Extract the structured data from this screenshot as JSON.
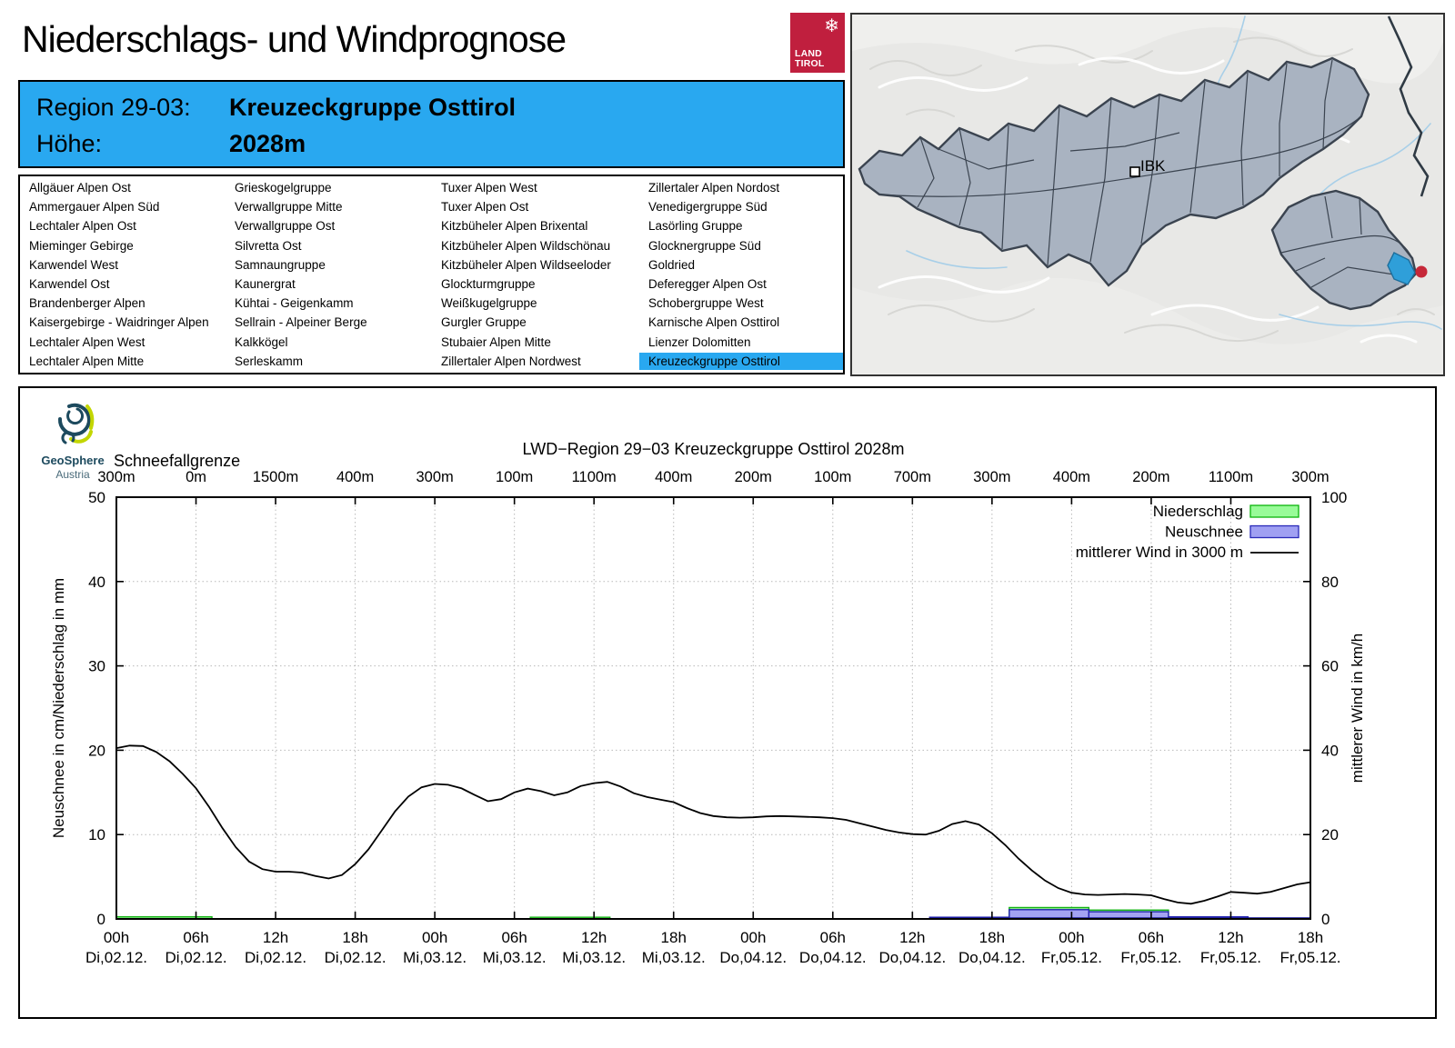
{
  "page_title": "Niederschlags- und Windprognose",
  "logo": {
    "glyph": "❄",
    "line1": "LAND",
    "line2": "TIROL"
  },
  "region_header": {
    "region_label": "Region 29-03:",
    "region_value": "Kreuzeckgruppe Osttirol",
    "altitude_label": "Höhe:",
    "altitude_value": "2028m"
  },
  "regions": {
    "selected": "Kreuzeckgruppe Osttirol",
    "columns": [
      [
        "Allgäuer Alpen Ost",
        "Ammergauer Alpen Süd",
        "Lechtaler Alpen Ost",
        "Mieminger Gebirge",
        "Karwendel West",
        "Karwendel Ost",
        "Brandenberger Alpen",
        "Kaisergebirge - Waidringer Alpen",
        "Lechtaler Alpen West",
        "Lechtaler Alpen Mitte"
      ],
      [
        "Grieskogelgruppe",
        "Verwallgruppe Mitte",
        "Verwallgruppe Ost",
        "Silvretta Ost",
        "Samnaungruppe",
        "Kaunergrat",
        "Kühtai - Geigenkamm",
        "Sellrain - Alpeiner Berge",
        "Kalkkögel",
        "Serleskamm"
      ],
      [
        "Tuxer Alpen West",
        "Tuxer Alpen Ost",
        "Kitzbüheler Alpen Brixental",
        "Kitzbüheler Alpen Wildschönau",
        "Kitzbüheler Alpen Wildseeloder",
        "Glockturmgruppe",
        "Weißkugelgruppe",
        "Gurgler Gruppe",
        "Stubaier Alpen Mitte",
        "Zillertaler Alpen Nordwest"
      ],
      [
        "Zillertaler Alpen Nordost",
        "Venedigergruppe Süd",
        "Lasörling Gruppe",
        "Glocknergruppe Süd",
        "Goldried",
        "Deferegger Alpen Ost",
        "Schobergruppe West",
        "Karnische Alpen Osttirol",
        "Lienzer Dolomitten",
        "Kreuzeckgruppe Osttirol"
      ]
    ]
  },
  "map": {
    "city_label": "IBK"
  },
  "geosphere": {
    "name": "GeoSphere",
    "country": "Austria"
  },
  "chart_data": {
    "type": "mixed",
    "title": "LWD−Region 29−03 Kreuzeckgruppe Osttirol 2028m",
    "snowline_label": "Schneefallgrenze",
    "snowline_values": [
      "300m",
      "0m",
      "1500m",
      "400m",
      "300m",
      "100m",
      "1100m",
      "400m",
      "200m",
      "100m",
      "700m",
      "300m",
      "400m",
      "200m",
      "1100m",
      "300m"
    ],
    "x_tick_times": [
      "00h",
      "06h",
      "12h",
      "18h",
      "00h",
      "06h",
      "12h",
      "18h",
      "00h",
      "06h",
      "12h",
      "18h",
      "00h",
      "06h",
      "12h",
      "18h"
    ],
    "x_tick_dates": [
      "Di,02.12.",
      "Di,02.12.",
      "Di,02.12.",
      "Di,02.12.",
      "Mi,03.12.",
      "Mi,03.12.",
      "Mi,03.12.",
      "Mi,03.12.",
      "Do,04.12.",
      "Do,04.12.",
      "Do,04.12.",
      "Do,04.12.",
      "Fr,05.12.",
      "Fr,05.12.",
      "Fr,05.12.",
      "Fr,05.12."
    ],
    "ylabel_left": "Neuschnee in cm/Niederschlag in mm",
    "ylabel_right": "mittlerer Wind in km/h",
    "ylim_left": [
      0,
      50
    ],
    "ylim_right": [
      0,
      100
    ],
    "y_ticks_left": [
      0,
      10,
      20,
      30,
      40,
      50
    ],
    "y_ticks_right": [
      0,
      20,
      40,
      60,
      80,
      100
    ],
    "grid": "dotted",
    "legend": [
      {
        "label": "Niederschlag",
        "type": "box",
        "fill": "#98fb98",
        "stroke": "#0ab40a"
      },
      {
        "label": "Neuschnee",
        "type": "box",
        "fill": "#a0a0f2",
        "stroke": "#2a2ab8"
      },
      {
        "label": "mittlerer Wind in 3000 m",
        "type": "line",
        "stroke": "#000000"
      }
    ],
    "precipitation_mm": [
      {
        "from_h": 0,
        "to_h": 7.2,
        "value": 0.25
      },
      {
        "from_h": 31.2,
        "to_h": 37.2,
        "value": 0.2
      },
      {
        "from_h": 67.3,
        "to_h": 73.3,
        "value": 1.35
      },
      {
        "from_h": 73.3,
        "to_h": 79.3,
        "value": 1.05
      }
    ],
    "new_snow_cm": [
      {
        "from_h": 61.3,
        "to_h": 67.3,
        "value": 0.2
      },
      {
        "from_h": 67.3,
        "to_h": 73.3,
        "value": 1.1
      },
      {
        "from_h": 73.3,
        "to_h": 79.3,
        "value": 0.85
      },
      {
        "from_h": 79.3,
        "to_h": 85.3,
        "value": 0.25
      },
      {
        "from_h": 85.3,
        "to_h": 90,
        "value": 0.1
      }
    ],
    "wind_kmh": [
      [
        0,
        40.5
      ],
      [
        1,
        41.1
      ],
      [
        2,
        41
      ],
      [
        3,
        39.6
      ],
      [
        4,
        37.4
      ],
      [
        5,
        34.4
      ],
      [
        6,
        31
      ],
      [
        7,
        26.5
      ],
      [
        8,
        21.5
      ],
      [
        9,
        17
      ],
      [
        10,
        13.6
      ],
      [
        11,
        11.8
      ],
      [
        12,
        11.2
      ],
      [
        13,
        11.2
      ],
      [
        14,
        11
      ],
      [
        15,
        10.2
      ],
      [
        16,
        9.6
      ],
      [
        17,
        10.4
      ],
      [
        18,
        13
      ],
      [
        19,
        16.5
      ],
      [
        20,
        21
      ],
      [
        21,
        25.5
      ],
      [
        22,
        29
      ],
      [
        23,
        31.2
      ],
      [
        24,
        32
      ],
      [
        25,
        31.8
      ],
      [
        26,
        31
      ],
      [
        27,
        29.4
      ],
      [
        28,
        27.9
      ],
      [
        29,
        28.4
      ],
      [
        30,
        30
      ],
      [
        31,
        30.9
      ],
      [
        32,
        30.3
      ],
      [
        33,
        29.3
      ],
      [
        34,
        30
      ],
      [
        35,
        31.5
      ],
      [
        36,
        32.2
      ],
      [
        37,
        32.5
      ],
      [
        38,
        31.4
      ],
      [
        39,
        29.8
      ],
      [
        40,
        28.9
      ],
      [
        41,
        28.3
      ],
      [
        42,
        27.7
      ],
      [
        43,
        26.3
      ],
      [
        44,
        25.1
      ],
      [
        45,
        24.4
      ],
      [
        46,
        24.1
      ],
      [
        47,
        24
      ],
      [
        48,
        24.1
      ],
      [
        49,
        24.3
      ],
      [
        50,
        24.4
      ],
      [
        51,
        24.3
      ],
      [
        52,
        24.2
      ],
      [
        53,
        24.1
      ],
      [
        54,
        23.9
      ],
      [
        55,
        23.5
      ],
      [
        56,
        22.7
      ],
      [
        57,
        21.9
      ],
      [
        58,
        21.1
      ],
      [
        59,
        20.5
      ],
      [
        60,
        20.1
      ],
      [
        61,
        20
      ],
      [
        62,
        20.9
      ],
      [
        63,
        22.5
      ],
      [
        64,
        23.2
      ],
      [
        65,
        22.4
      ],
      [
        66,
        20.3
      ],
      [
        67,
        17.5
      ],
      [
        68,
        14.3
      ],
      [
        69,
        11.5
      ],
      [
        70,
        9.1
      ],
      [
        71,
        7.3
      ],
      [
        72,
        6.2
      ],
      [
        73,
        5.8
      ],
      [
        74,
        5.7
      ],
      [
        75,
        5.8
      ],
      [
        76,
        5.9
      ],
      [
        77,
        5.8
      ],
      [
        78,
        5.6
      ],
      [
        79,
        4.7
      ],
      [
        80,
        3.9
      ],
      [
        81,
        3.6
      ],
      [
        82,
        4.3
      ],
      [
        83,
        5.3
      ],
      [
        84,
        6.4
      ],
      [
        85,
        6.2
      ],
      [
        86,
        6
      ],
      [
        87,
        6.4
      ],
      [
        88,
        7.3
      ],
      [
        89,
        8.2
      ],
      [
        90,
        8.7
      ]
    ],
    "colors": {
      "precip_fill": "#9cf59c",
      "precip_stroke": "#14b314",
      "snow_fill": "#a3a3f2",
      "snow_stroke": "#2424b0",
      "snow_baseline": "#1a1a99",
      "wind": "#000000",
      "grid": "#b9b9b9",
      "frame": "#000000"
    }
  }
}
